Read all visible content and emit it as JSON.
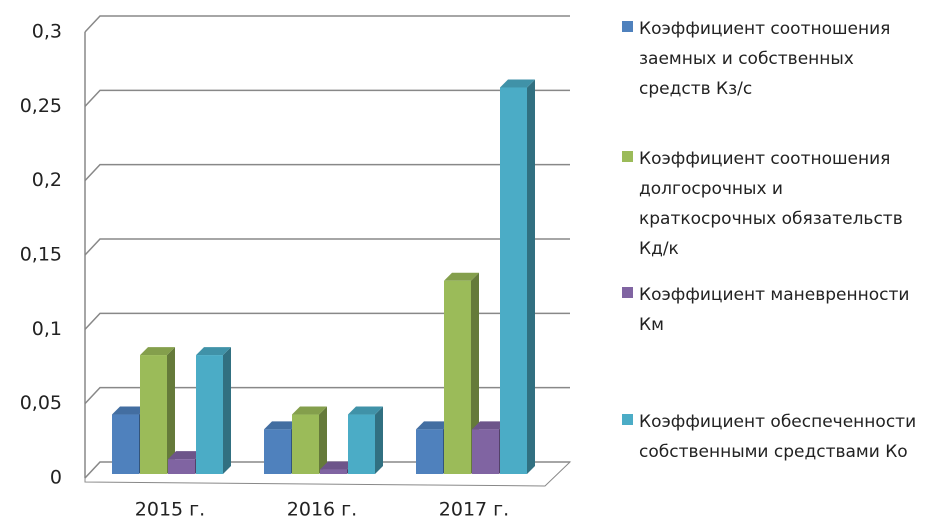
{
  "chart_data": {
    "type": "bar3d",
    "categories": [
      "2015 г.",
      "2016 г.",
      "2017 г."
    ],
    "series": [
      {
        "name": "Коэффициент соотношения заемных и собственных средств Кз/с",
        "color": "#4f81bd",
        "values": [
          0.04,
          0.03,
          0.03
        ]
      },
      {
        "name": "Коэффициент соотношения долгосрочных и краткосрочных обязательств Кд/к",
        "color": "#9bbb59",
        "values": [
          0.08,
          0.04,
          0.13
        ]
      },
      {
        "name": "Коэффициент маневренности Км",
        "color": "#8064a2",
        "values": [
          0.01,
          0.003,
          0.03
        ]
      },
      {
        "name": "Коэффициент обеспеченности собственными средствами Ко",
        "color": "#4bacc6",
        "values": [
          0.08,
          0.04,
          0.26
        ]
      }
    ],
    "ylim": [
      0,
      0.3
    ],
    "yticks": [
      0,
      {
        "value": 0.05,
        "label": "0,05"
      },
      {
        "value": 0.1,
        "label": "0,1"
      },
      {
        "value": 0.15,
        "label": "0,15"
      },
      {
        "value": 0.2,
        "label": "0,2"
      },
      {
        "value": 0.25,
        "label": "0,25"
      },
      {
        "value": 0.3,
        "label": "0,3"
      }
    ],
    "grid": true,
    "legend": "right"
  }
}
